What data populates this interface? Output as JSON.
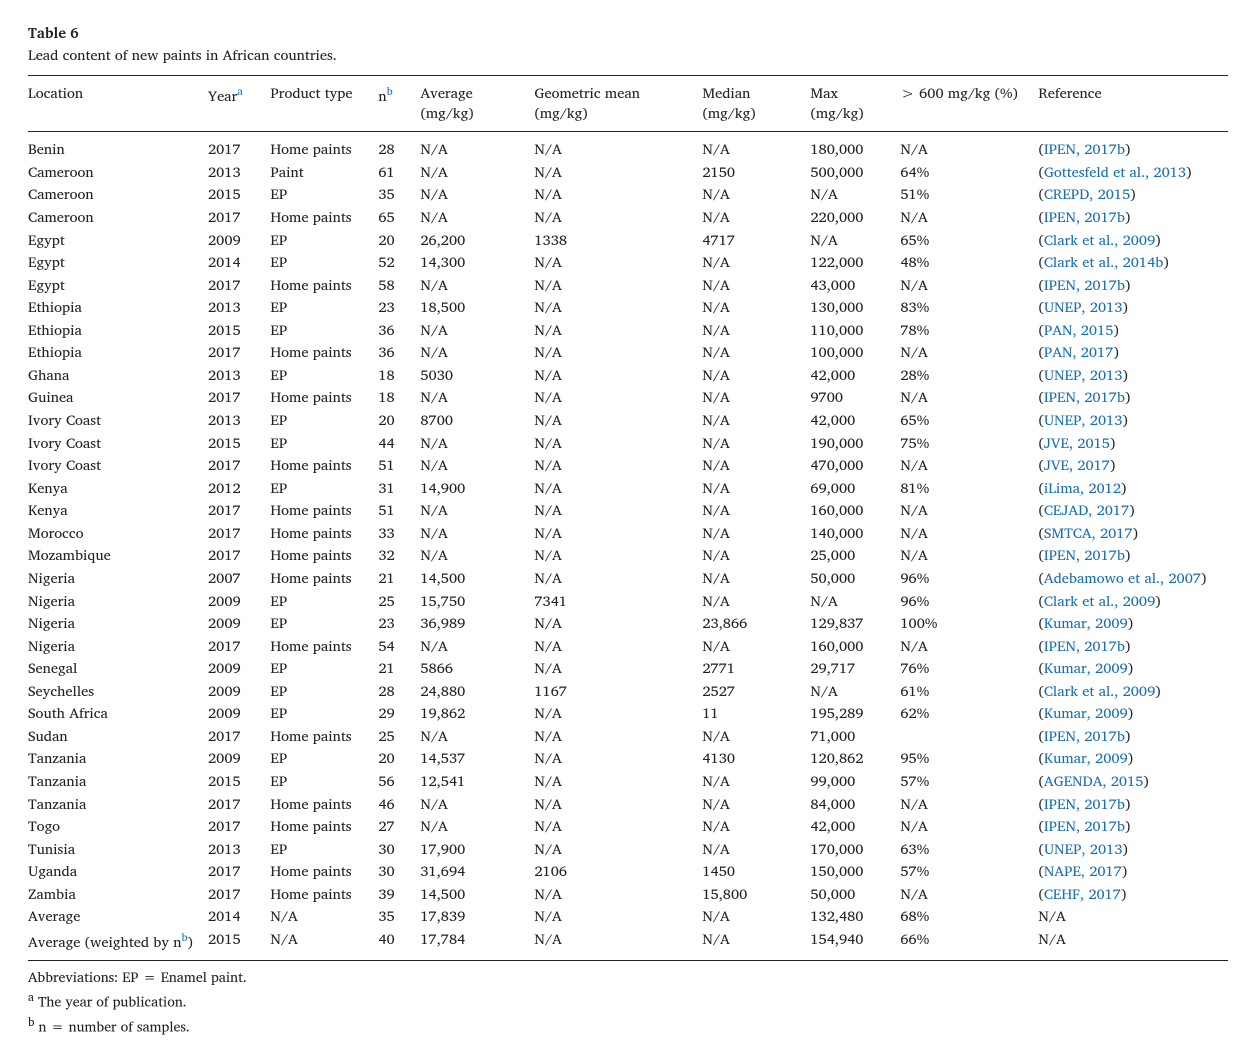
{
  "table_label": "Table 6",
  "caption": "Lead content of new paints in African countries.",
  "columns": [
    {
      "key": "location",
      "label": "Location"
    },
    {
      "key": "year",
      "label": "Year",
      "sup": "a"
    },
    {
      "key": "product",
      "label": "Product type"
    },
    {
      "key": "n",
      "label": "n",
      "sup": "b"
    },
    {
      "key": "avg",
      "label": "Average (mg/kg)"
    },
    {
      "key": "geo",
      "label": "Geometric mean (mg/kg)"
    },
    {
      "key": "median",
      "label": "Median (mg/kg)"
    },
    {
      "key": "max",
      "label": "Max (mg/kg)"
    },
    {
      "key": "gt600",
      "label": "> 600 mg/kg (%)"
    },
    {
      "key": "ref",
      "label": "Reference"
    }
  ],
  "rows": [
    {
      "location": "Benin",
      "year": "2017",
      "product": "Home paints",
      "n": "28",
      "avg": "N/A",
      "geo": "N/A",
      "median": "N/A",
      "max": "180,000",
      "gt600": "N/A",
      "ref": "IPEN, 2017b",
      "ref_na": false
    },
    {
      "location": "Cameroon",
      "year": "2013",
      "product": "Paint",
      "n": "61",
      "avg": "N/A",
      "geo": "N/A",
      "median": "2150",
      "max": "500,000",
      "gt600": "64%",
      "ref": "Gottesfeld et al., 2013",
      "ref_na": false
    },
    {
      "location": "Cameroon",
      "year": "2015",
      "product": "EP",
      "n": "35",
      "avg": "N/A",
      "geo": "N/A",
      "median": "N/A",
      "max": "N/A",
      "gt600": "51%",
      "ref": "CREPD, 2015",
      "ref_na": false
    },
    {
      "location": "Cameroon",
      "year": "2017",
      "product": "Home paints",
      "n": "65",
      "avg": "N/A",
      "geo": "N/A",
      "median": "N/A",
      "max": "220,000",
      "gt600": "N/A",
      "ref": "IPEN, 2017b",
      "ref_na": false
    },
    {
      "location": "Egypt",
      "year": "2009",
      "product": "EP",
      "n": "20",
      "avg": "26,200",
      "geo": "1338",
      "median": "4717",
      "max": "N/A",
      "gt600": "65%",
      "ref": "Clark et al., 2009",
      "ref_na": false
    },
    {
      "location": "Egypt",
      "year": "2014",
      "product": "EP",
      "n": "52",
      "avg": "14,300",
      "geo": "N/A",
      "median": "N/A",
      "max": "122,000",
      "gt600": "48%",
      "ref": "Clark et al., 2014b",
      "ref_na": false
    },
    {
      "location": "Egypt",
      "year": "2017",
      "product": "Home paints",
      "n": "58",
      "avg": "N/A",
      "geo": "N/A",
      "median": "N/A",
      "max": "43,000",
      "gt600": "N/A",
      "ref": "IPEN, 2017b",
      "ref_na": false
    },
    {
      "location": "Ethiopia",
      "year": "2013",
      "product": "EP",
      "n": "23",
      "avg": "18,500",
      "geo": "N/A",
      "median": "N/A",
      "max": "130,000",
      "gt600": "83%",
      "ref": "UNEP, 2013",
      "ref_na": false
    },
    {
      "location": "Ethiopia",
      "year": "2015",
      "product": "EP",
      "n": "36",
      "avg": "N/A",
      "geo": "N/A",
      "median": "N/A",
      "max": "110,000",
      "gt600": "78%",
      "ref": "PAN, 2015",
      "ref_na": false
    },
    {
      "location": "Ethiopia",
      "year": "2017",
      "product": "Home paints",
      "n": "36",
      "avg": "N/A",
      "geo": "N/A",
      "median": "N/A",
      "max": "100,000",
      "gt600": "N/A",
      "ref": "PAN, 2017",
      "ref_na": false
    },
    {
      "location": "Ghana",
      "year": "2013",
      "product": "EP",
      "n": "18",
      "avg": "5030",
      "geo": "N/A",
      "median": "N/A",
      "max": "42,000",
      "gt600": "28%",
      "ref": "UNEP, 2013",
      "ref_na": false
    },
    {
      "location": "Guinea",
      "year": "2017",
      "product": "Home paints",
      "n": "18",
      "avg": "N/A",
      "geo": "N/A",
      "median": "N/A",
      "max": "9700",
      "gt600": "N/A",
      "ref": "IPEN, 2017b",
      "ref_na": false
    },
    {
      "location": "Ivory Coast",
      "year": "2013",
      "product": "EP",
      "n": "20",
      "avg": "8700",
      "geo": "N/A",
      "median": "N/A",
      "max": "42,000",
      "gt600": "65%",
      "ref": "UNEP, 2013",
      "ref_na": false
    },
    {
      "location": "Ivory Coast",
      "year": "2015",
      "product": "EP",
      "n": "44",
      "avg": "N/A",
      "geo": "N/A",
      "median": "N/A",
      "max": "190,000",
      "gt600": "75%",
      "ref": "JVE, 2015",
      "ref_na": false
    },
    {
      "location": "Ivory Coast",
      "year": "2017",
      "product": "Home paints",
      "n": "51",
      "avg": "N/A",
      "geo": "N/A",
      "median": "N/A",
      "max": "470,000",
      "gt600": "N/A",
      "ref": "JVE, 2017",
      "ref_na": false
    },
    {
      "location": "Kenya",
      "year": "2012",
      "product": "EP",
      "n": "31",
      "avg": "14,900",
      "geo": "N/A",
      "median": "N/A",
      "max": "69,000",
      "gt600": "81%",
      "ref": "iLima, 2012",
      "ref_na": false
    },
    {
      "location": "Kenya",
      "year": "2017",
      "product": "Home paints",
      "n": "51",
      "avg": "N/A",
      "geo": "N/A",
      "median": "N/A",
      "max": "160,000",
      "gt600": "N/A",
      "ref": "CEJAD, 2017",
      "ref_na": false
    },
    {
      "location": "Morocco",
      "year": "2017",
      "product": "Home paints",
      "n": "33",
      "avg": "N/A",
      "geo": "N/A",
      "median": "N/A",
      "max": "140,000",
      "gt600": "N/A",
      "ref": "SMTCA, 2017",
      "ref_na": false
    },
    {
      "location": "Mozambique",
      "year": "2017",
      "product": "Home paints",
      "n": "32",
      "avg": "N/A",
      "geo": "N/A",
      "median": "N/A",
      "max": "25,000",
      "gt600": "N/A",
      "ref": "IPEN, 2017b",
      "ref_na": false
    },
    {
      "location": "Nigeria",
      "year": "2007",
      "product": "Home paints",
      "n": "21",
      "avg": "14,500",
      "geo": "N/A",
      "median": "N/A",
      "max": "50,000",
      "gt600": "96%",
      "ref": "Adebamowo et al., 2007",
      "ref_na": false
    },
    {
      "location": "Nigeria",
      "year": "2009",
      "product": "EP",
      "n": "25",
      "avg": "15,750",
      "geo": "7341",
      "median": "N/A",
      "max": "N/A",
      "gt600": "96%",
      "ref": "Clark et al., 2009",
      "ref_na": false
    },
    {
      "location": "Nigeria",
      "year": "2009",
      "product": "EP",
      "n": "23",
      "avg": "36,989",
      "geo": "N/A",
      "median": "23,866",
      "max": "129,837",
      "gt600": "100%",
      "ref": "Kumar, 2009",
      "ref_na": false
    },
    {
      "location": "Nigeria",
      "year": "2017",
      "product": "Home paints",
      "n": "54",
      "avg": "N/A",
      "geo": "N/A",
      "median": "N/A",
      "max": "160,000",
      "gt600": "N/A",
      "ref": "IPEN, 2017b",
      "ref_na": false
    },
    {
      "location": "Senegal",
      "year": "2009",
      "product": "EP",
      "n": "21",
      "avg": "5866",
      "geo": "N/A",
      "median": "2771",
      "max": "29,717",
      "gt600": "76%",
      "ref": "Kumar, 2009",
      "ref_na": false
    },
    {
      "location": "Seychelles",
      "year": "2009",
      "product": "EP",
      "n": "28",
      "avg": "24,880",
      "geo": "1167",
      "median": "2527",
      "max": "N/A",
      "gt600": "61%",
      "ref": "Clark et al., 2009",
      "ref_na": false
    },
    {
      "location": "South Africa",
      "year": "2009",
      "product": "EP",
      "n": "29",
      "avg": "19,862",
      "geo": "N/A",
      "median": "11",
      "max": "195,289",
      "gt600": "62%",
      "ref": "Kumar, 2009",
      "ref_na": false
    },
    {
      "location": "Sudan",
      "year": "2017",
      "product": "Home paints",
      "n": "25",
      "avg": "N/A",
      "geo": "N/A",
      "median": "N/A",
      "max": "71,000",
      "gt600": "",
      "ref": "IPEN, 2017b",
      "ref_na": false
    },
    {
      "location": "Tanzania",
      "year": "2009",
      "product": "EP",
      "n": "20",
      "avg": "14,537",
      "geo": "N/A",
      "median": "4130",
      "max": "120,862",
      "gt600": "95%",
      "ref": "Kumar, 2009",
      "ref_na": false
    },
    {
      "location": "Tanzania",
      "year": "2015",
      "product": "EP",
      "n": "56",
      "avg": "12,541",
      "geo": "N/A",
      "median": "N/A",
      "max": "99,000",
      "gt600": "57%",
      "ref": "AGENDA, 2015",
      "ref_na": false
    },
    {
      "location": "Tanzania",
      "year": "2017",
      "product": "Home paints",
      "n": "46",
      "avg": "N/A",
      "geo": "N/A",
      "median": "N/A",
      "max": "84,000",
      "gt600": "N/A",
      "ref": "IPEN, 2017b",
      "ref_na": false
    },
    {
      "location": "Togo",
      "year": "2017",
      "product": "Home paints",
      "n": "27",
      "avg": "N/A",
      "geo": "N/A",
      "median": "N/A",
      "max": "42,000",
      "gt600": "N/A",
      "ref": "IPEN, 2017b",
      "ref_na": false
    },
    {
      "location": "Tunisia",
      "year": "2013",
      "product": "EP",
      "n": "30",
      "avg": "17,900",
      "geo": "N/A",
      "median": "N/A",
      "max": "170,000",
      "gt600": "63%",
      "ref": "UNEP, 2013",
      "ref_na": false
    },
    {
      "location": "Uganda",
      "year": "2017",
      "product": "Home paints",
      "n": "30",
      "avg": "31,694",
      "geo": "2106",
      "median": "1450",
      "max": "150,000",
      "gt600": "57%",
      "ref": "NAPE, 2017",
      "ref_na": false
    },
    {
      "location": "Zambia",
      "year": "2017",
      "product": "Home paints",
      "n": "39",
      "avg": "14,500",
      "geo": "N/A",
      "median": "15,800",
      "max": "50,000",
      "gt600": "N/A",
      "ref": "CEHF, 2017",
      "ref_na": false
    },
    {
      "location": "Average",
      "year": "2014",
      "product": "N/A",
      "n": "35",
      "avg": "17,839",
      "geo": "N/A",
      "median": "N/A",
      "max": "132,480",
      "gt600": "68%",
      "ref": "N/A",
      "ref_na": true
    },
    {
      "location": "Average (weighted by n",
      "location_sup": "b",
      "location_suffix": ")",
      "year": "2015",
      "product": "N/A",
      "n": "40",
      "avg": "17,784",
      "geo": "N/A",
      "median": "N/A",
      "max": "154,940",
      "gt600": "66%",
      "ref": "N/A",
      "ref_na": true
    }
  ],
  "footnotes": {
    "abbrev": "Abbreviations: EP = Enamel paint.",
    "a": "The year of publication.",
    "b": "n = number of samples."
  }
}
